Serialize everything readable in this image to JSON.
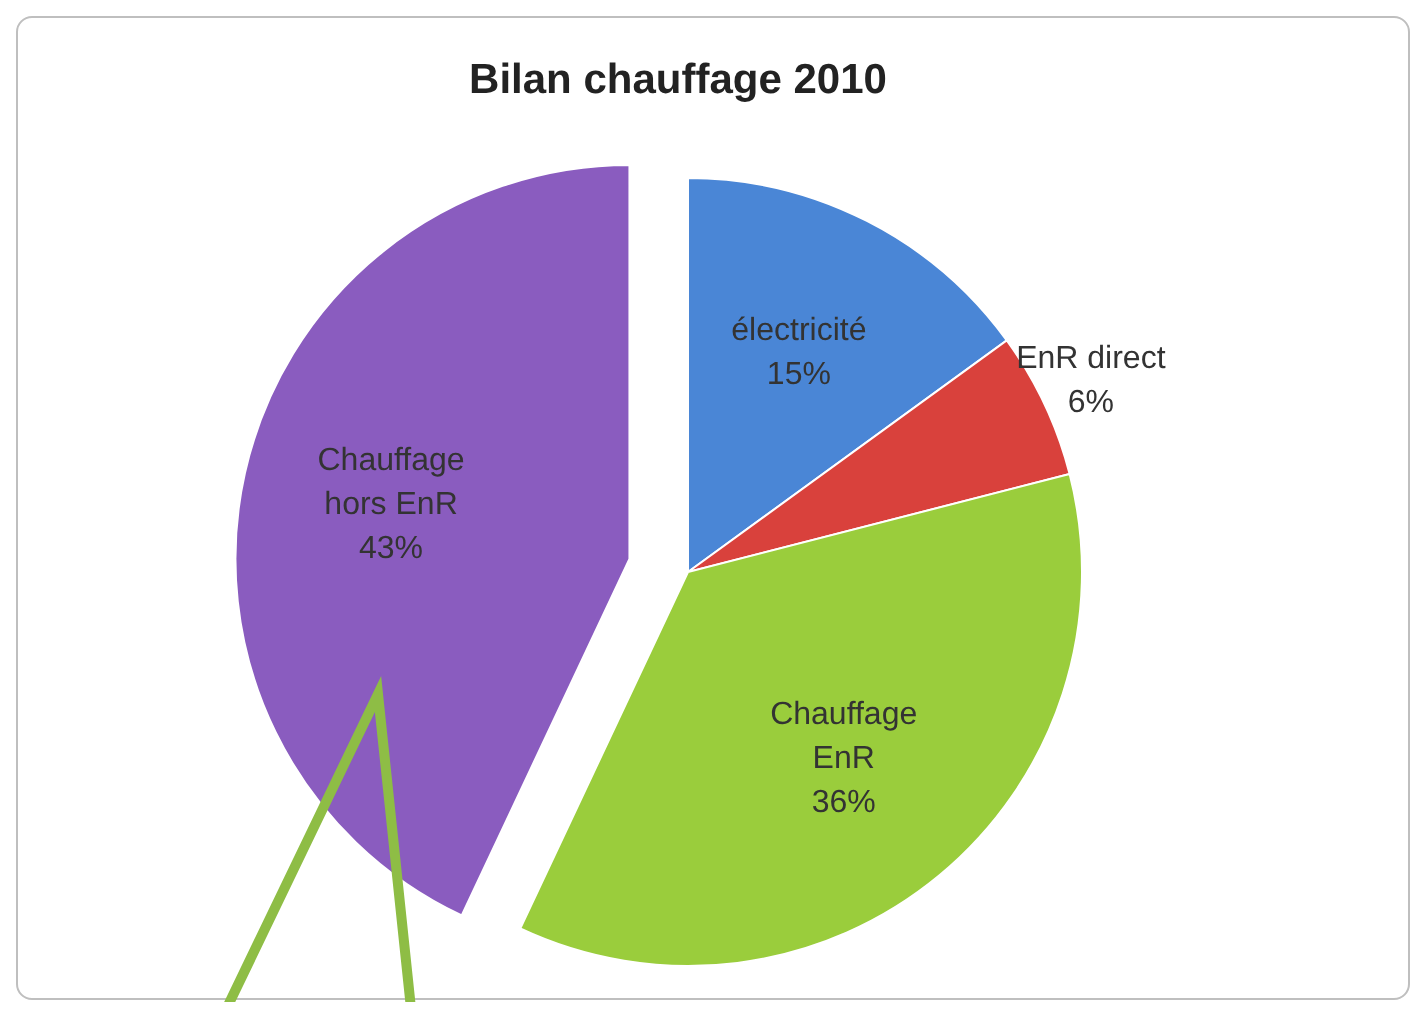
{
  "chart_data": {
    "type": "pie",
    "title": "Bilan chauffage 2010",
    "categories": [
      "électricité",
      "EnR direct",
      "Chauffage EnR",
      "Chauffage hors EnR"
    ],
    "values": [
      15,
      6,
      36,
      43
    ],
    "colors": [
      "#4a86d6",
      "#d9413c",
      "#9acd3c",
      "#8a5cbf"
    ],
    "value_labels": [
      "15%",
      "6%",
      "36%",
      "43%"
    ]
  }
}
